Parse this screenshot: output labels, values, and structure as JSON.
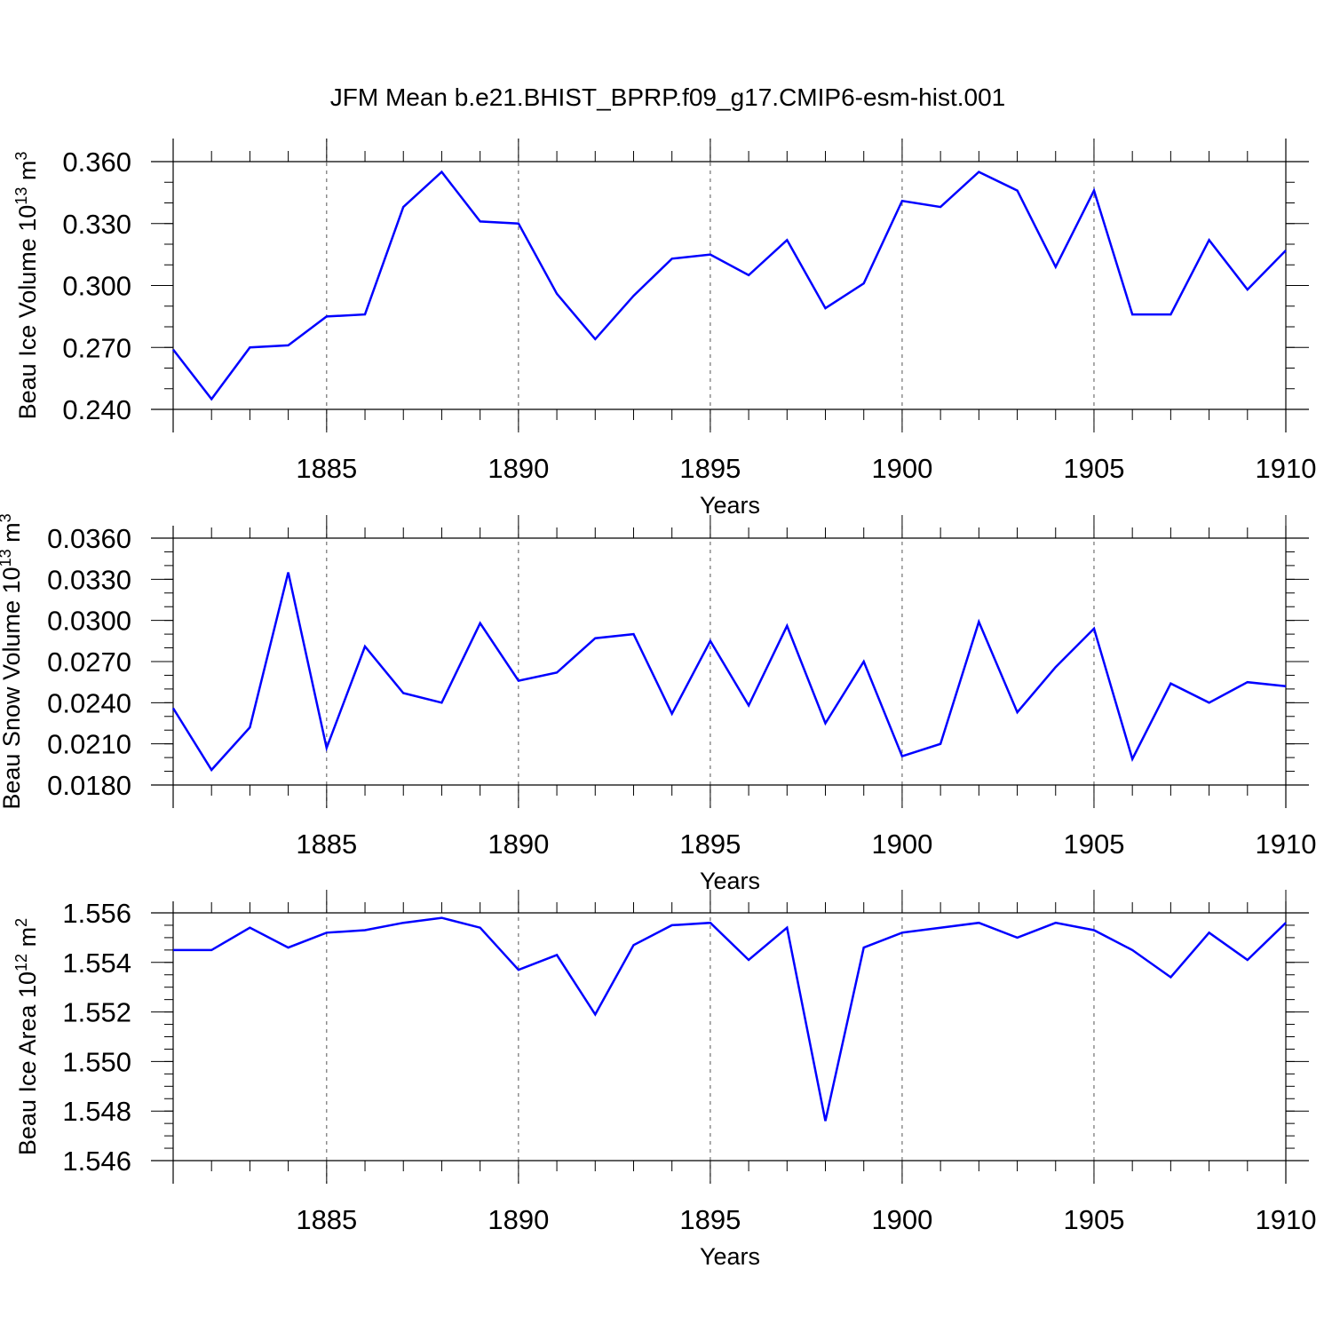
{
  "figure_title": "JFM Mean b.e21.BHIST_BPRP.f09_g17.CMIP6-esm-hist.001",
  "colors": {
    "line": "#0000ff",
    "axis": "#000000",
    "grid": "#555555"
  },
  "chart_data": [
    {
      "type": "line",
      "title": "",
      "xlabel": "Years",
      "ylabel": {
        "text": "Beau Ice Volume 10",
        "exp": "13",
        "unit": " m",
        "unit_exp": "3"
      },
      "xlim": [
        1881,
        1910
      ],
      "ylim": [
        0.24,
        0.36
      ],
      "x_major_ticks": [
        1885,
        1890,
        1895,
        1900,
        1905,
        1910
      ],
      "x_tick_labels": [
        "1885",
        "1890",
        "1895",
        "1900",
        "1905",
        "1910"
      ],
      "y_major_ticks": [
        0.24,
        0.27,
        0.3,
        0.33,
        0.36
      ],
      "y_tick_labels": [
        "0.240",
        "0.270",
        "0.300",
        "0.330",
        "0.360"
      ],
      "y_minor_step": 0.01,
      "grid": "vertical dashed at major x ticks",
      "x": [
        1881,
        1882,
        1883,
        1884,
        1885,
        1886,
        1887,
        1888,
        1889,
        1890,
        1891,
        1892,
        1893,
        1894,
        1895,
        1896,
        1897,
        1898,
        1899,
        1900,
        1901,
        1902,
        1903,
        1904,
        1905,
        1906,
        1907,
        1908,
        1909,
        1910
      ],
      "series": [
        {
          "values": [
            0.269,
            0.245,
            0.27,
            0.271,
            0.285,
            0.286,
            0.338,
            0.355,
            0.331,
            0.33,
            0.296,
            0.274,
            0.295,
            0.313,
            0.315,
            0.305,
            0.322,
            0.289,
            0.301,
            0.341,
            0.338,
            0.355,
            0.346,
            0.309,
            0.346,
            0.286,
            0.286,
            0.322,
            0.298,
            0.317
          ]
        }
      ]
    },
    {
      "type": "line",
      "title": "",
      "xlabel": "Years",
      "ylabel": {
        "text": "Beau Snow Volume 10",
        "exp": "13",
        "unit": " m",
        "unit_exp": "3"
      },
      "xlim": [
        1881,
        1910
      ],
      "ylim": [
        0.018,
        0.036
      ],
      "x_major_ticks": [
        1885,
        1890,
        1895,
        1900,
        1905,
        1910
      ],
      "x_tick_labels": [
        "1885",
        "1890",
        "1895",
        "1900",
        "1905",
        "1910"
      ],
      "y_major_ticks": [
        0.018,
        0.021,
        0.024,
        0.027,
        0.03,
        0.033,
        0.036
      ],
      "y_tick_labels": [
        "0.0180",
        "0.0210",
        "0.0240",
        "0.0270",
        "0.0300",
        "0.0330",
        "0.0360"
      ],
      "y_minor_step": 0.001,
      "grid": "vertical dashed at major x ticks",
      "x": [
        1881,
        1882,
        1883,
        1884,
        1885,
        1886,
        1887,
        1888,
        1889,
        1890,
        1891,
        1892,
        1893,
        1894,
        1895,
        1896,
        1897,
        1898,
        1899,
        1900,
        1901,
        1902,
        1903,
        1904,
        1905,
        1906,
        1907,
        1908,
        1909,
        1910
      ],
      "series": [
        {
          "values": [
            0.0236,
            0.0191,
            0.0222,
            0.0335,
            0.0207,
            0.0281,
            0.0247,
            0.024,
            0.0298,
            0.0256,
            0.0262,
            0.0287,
            0.029,
            0.0232,
            0.0285,
            0.0238,
            0.0296,
            0.0225,
            0.027,
            0.0201,
            0.021,
            0.0299,
            0.0233,
            0.0266,
            0.0294,
            0.0199,
            0.0254,
            0.024,
            0.0255,
            0.0252
          ]
        }
      ]
    },
    {
      "type": "line",
      "title": "",
      "xlabel": "Years",
      "ylabel": {
        "text": "Beau Ice Area 10",
        "exp": "12",
        "unit": " m",
        "unit_exp": "2"
      },
      "xlim": [
        1881,
        1910
      ],
      "ylim": [
        1.546,
        1.556
      ],
      "x_major_ticks": [
        1885,
        1890,
        1895,
        1900,
        1905,
        1910
      ],
      "x_tick_labels": [
        "1885",
        "1890",
        "1895",
        "1900",
        "1905",
        "1910"
      ],
      "y_major_ticks": [
        1.546,
        1.548,
        1.55,
        1.552,
        1.554,
        1.556
      ],
      "y_tick_labels": [
        "1.546",
        "1.548",
        "1.550",
        "1.552",
        "1.554",
        "1.556"
      ],
      "y_minor_step": 0.0005,
      "grid": "vertical dashed at major x ticks",
      "x": [
        1881,
        1882,
        1883,
        1884,
        1885,
        1886,
        1887,
        1888,
        1889,
        1890,
        1891,
        1892,
        1893,
        1894,
        1895,
        1896,
        1897,
        1898,
        1899,
        1900,
        1901,
        1902,
        1903,
        1904,
        1905,
        1906,
        1907,
        1908,
        1909,
        1910
      ],
      "series": [
        {
          "values": [
            1.5545,
            1.5545,
            1.5554,
            1.5546,
            1.5552,
            1.5553,
            1.5556,
            1.5558,
            1.5554,
            1.5537,
            1.5543,
            1.5519,
            1.5547,
            1.5555,
            1.5556,
            1.5541,
            1.5554,
            1.5476,
            1.5546,
            1.5552,
            1.5554,
            1.5556,
            1.555,
            1.5556,
            1.5553,
            1.5545,
            1.5534,
            1.5552,
            1.5541,
            1.5556
          ]
        }
      ]
    }
  ]
}
